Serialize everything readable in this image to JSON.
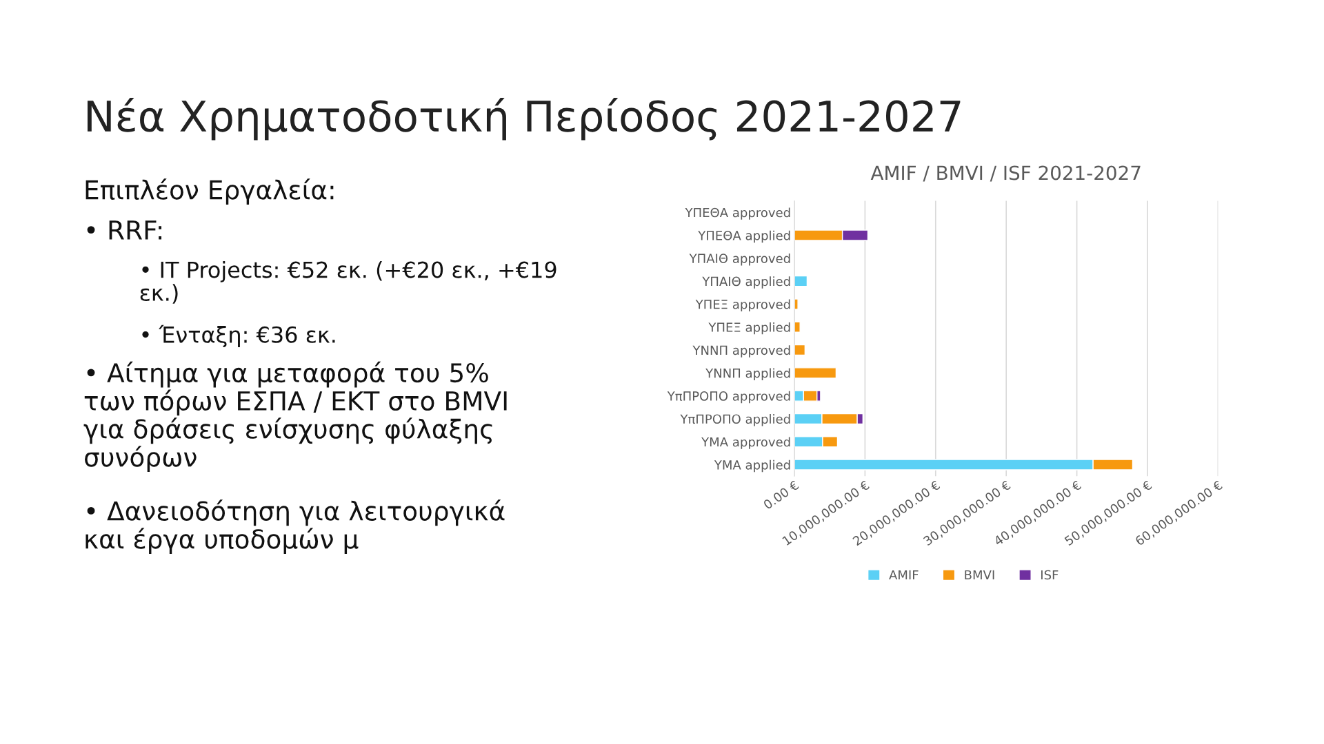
{
  "chart_data": {
    "type": "bar",
    "orientation": "horizontal",
    "stacked": true,
    "title": "AMIF / BMVI / ISF 2021-2027",
    "categories": [
      "ΥΠΕΘΑ approved",
      "ΥΠΕΘΑ applied",
      "ΥΠΑΙΘ approved",
      "ΥΠΑΙΘ applied",
      "ΥΠΕΞ approved",
      "ΥΠΕΞ applied",
      "ΥΝΝΠ approved",
      "ΥΝΝΠ applied",
      "ΥπΠΡΟΠΟ approved",
      "ΥπΠΡΟΠΟ applied",
      "ΥΜΑ approved",
      "ΥΜΑ applied"
    ],
    "series": [
      {
        "name": "AMIF",
        "color": "#5bd0f5",
        "values": [
          null,
          null,
          null,
          1800000,
          null,
          null,
          null,
          null,
          1300000,
          3900000,
          4000000,
          42300000
        ]
      },
      {
        "name": "BMVI",
        "color": "#f7990f",
        "values": [
          null,
          6800000,
          null,
          null,
          500000,
          800000,
          1500000,
          5900000,
          1900000,
          5000000,
          2100000,
          5600000
        ]
      },
      {
        "name": "ISF",
        "color": "#7030a0",
        "values": [
          null,
          3600000,
          null,
          null,
          null,
          null,
          null,
          null,
          500000,
          800000,
          null,
          null
        ]
      }
    ],
    "xlim": [
      0,
      60000000
    ],
    "xticks": [
      {
        "value": 0,
        "label": "0.00 €"
      },
      {
        "value": 10000000,
        "label": "10,000,000.00 €"
      },
      {
        "value": 20000000,
        "label": "20,000,000.00 €"
      },
      {
        "value": 30000000,
        "label": "30,000,000.00 €"
      },
      {
        "value": 40000000,
        "label": "40,000,000.00 €"
      },
      {
        "value": 50000000,
        "label": "50,000,000.00 €"
      },
      {
        "value": 60000000,
        "label": "60,000,000.00 €"
      }
    ],
    "grid": "x",
    "legend": "bottom",
    "annotations": [
      "Νέα Χρηματοδοτική Περίοδος 2021-2027",
      "Επιπλέον Εργαλεία:",
      "• RRF:",
      "• IT Projects: €52 εκ. (+€20 εκ., +€19\nεκ.)",
      "• Ένταξη: €36 εκ.",
      "• Αίτημα για μεταφορά του 5%\nτων πόρων ΕΣΠΑ / ΕΚΤ στο BMVI\nγια δράσεις ενίσχυσης φύλαξης\nσυνόρων",
      "• Δανειοδότηση για λειτουργικά\nκαι έργα υποδομών μ"
    ]
  }
}
